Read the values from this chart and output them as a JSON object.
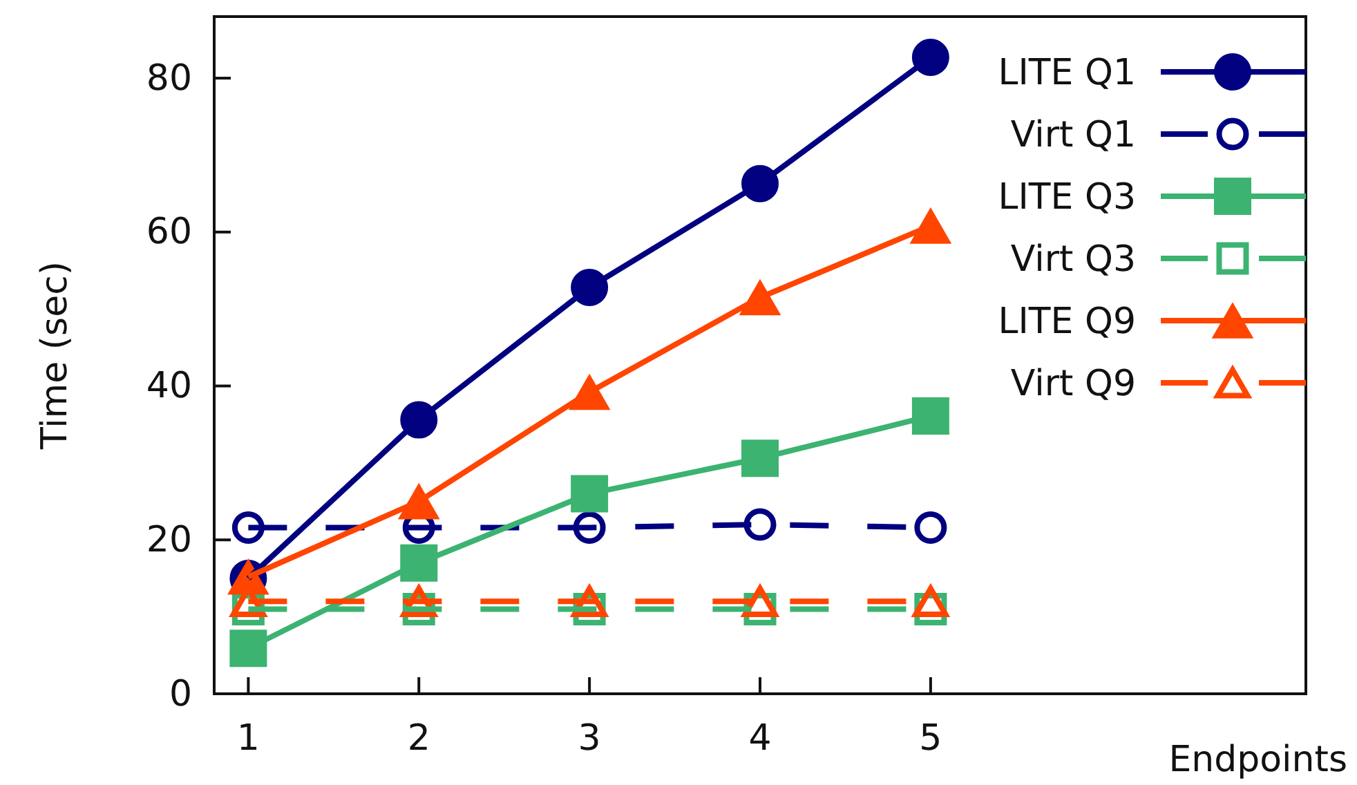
{
  "chart_data": {
    "type": "line",
    "xlabel": "Endpoints",
    "ylabel": "Time (sec)",
    "x": [
      1,
      2,
      3,
      4,
      5
    ],
    "xlim": [
      0.8,
      7.2
    ],
    "xticks": [
      1,
      2,
      3,
      4,
      5
    ],
    "ylim": [
      0,
      88
    ],
    "yticks": [
      0,
      20,
      40,
      60,
      80
    ],
    "grid": false,
    "legend": "top right",
    "series": [
      {
        "name": "LITE Q1",
        "color": "#000080",
        "marker": "circle",
        "line_style": "solid",
        "values": [
          15,
          35.6,
          52.8,
          66.3,
          82.7
        ]
      },
      {
        "name": "Virt Q1",
        "color": "#000080",
        "marker": "circle",
        "line_style": "dashed",
        "values": [
          21.6,
          21.6,
          21.6,
          22,
          21.6
        ]
      },
      {
        "name": "LITE Q3",
        "color": "#3cb371",
        "marker": "square",
        "line_style": "solid",
        "values": [
          5.9,
          17,
          26,
          30.6,
          36.1
        ]
      },
      {
        "name": "Virt Q3",
        "color": "#3cb371",
        "marker": "square",
        "line_style": "dashed",
        "values": [
          11,
          11,
          11,
          11,
          11
        ]
      },
      {
        "name": "LITE Q9",
        "color": "#ff4500",
        "marker": "triangle",
        "line_style": "solid",
        "values": [
          15.2,
          25,
          39.2,
          51.5,
          60.8
        ]
      },
      {
        "name": "Virt Q9",
        "color": "#ff4500",
        "marker": "triangle",
        "line_style": "dashed",
        "values": [
          12,
          12,
          12,
          12,
          12
        ]
      }
    ]
  }
}
